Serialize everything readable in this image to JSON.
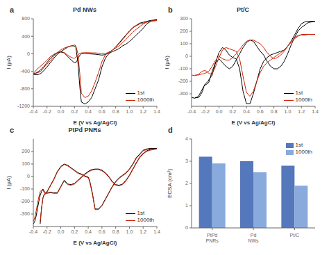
{
  "chart_data": [
    {
      "type": "line",
      "title": "Pd NWs",
      "annotations": [
        "a"
      ],
      "xlabel": "E (V vs Ag/AgCl)",
      "ylabel": "I (μA)",
      "x": [
        -0.4,
        -0.35,
        -0.3,
        -0.27,
        -0.24,
        -0.2,
        -0.15,
        -0.1,
        -0.05,
        0.0,
        0.05,
        0.1,
        0.15,
        0.2,
        0.22,
        0.25,
        0.28,
        0.3,
        0.35,
        0.4,
        0.45,
        0.5,
        0.55,
        0.6,
        0.65,
        0.7,
        0.75,
        0.8,
        0.85,
        0.9,
        0.95,
        1.0,
        1.05,
        1.1,
        1.15,
        1.2,
        1.25,
        1.3,
        1.35,
        1.4,
        1.4,
        1.35,
        1.3,
        1.25,
        1.2,
        1.15,
        1.1,
        1.05,
        1.0,
        0.95,
        0.9,
        0.85,
        0.8,
        0.75,
        0.7,
        0.65,
        0.6,
        0.55,
        0.5,
        0.45,
        0.4,
        0.35,
        0.3,
        0.28,
        0.26,
        0.24,
        0.22,
        0.2,
        0.18,
        0.15,
        0.1,
        0.05,
        0.0,
        -0.05,
        -0.1,
        -0.15,
        -0.2,
        -0.25,
        -0.3,
        -0.35,
        -0.4
      ],
      "xlim": [
        -0.4,
        1.4
      ],
      "xticks": [
        -0.4,
        -0.2,
        {
          "value": 0.0,
          "label": "0.0"
        },
        0.2,
        0.4,
        0.6,
        0.8,
        {
          "value": 1.0,
          "label": "1.0"
        },
        1.2,
        1.4
      ],
      "ylim": [
        -1200,
        800
      ],
      "yticks": [
        -1200,
        -800,
        -400,
        0,
        400,
        800
      ],
      "series": [
        {
          "name": "1st",
          "color": "black",
          "values": [
            -470,
            -480,
            -460,
            -420,
            -370,
            -300,
            -200,
            -100,
            -10,
            50,
            100,
            150,
            180,
            180,
            140,
            -200,
            -800,
            -1100,
            -1150,
            -1100,
            -1000,
            -800,
            -600,
            -300,
            -100,
            0,
            50,
            80,
            120,
            180,
            220,
            280,
            350,
            430,
            500,
            580,
            680,
            730,
            760,
            780,
            780,
            770,
            760,
            740,
            720,
            700,
            650,
            600,
            520,
            430,
            340,
            250,
            160,
            80,
            20,
            -20,
            -30,
            -20,
            -10,
            -5,
            0,
            10,
            0,
            -30,
            -80,
            -150,
            -200,
            -200,
            -180,
            -140,
            -60,
            20,
            40,
            20,
            -30,
            -100,
            -200,
            -300,
            -380,
            -430,
            -470
          ]
        },
        {
          "name": "1000th",
          "color": "#cc2200",
          "values": [
            -450,
            -440,
            -410,
            -360,
            -300,
            -240,
            -150,
            -60,
            30,
            90,
            130,
            160,
            180,
            200,
            180,
            0,
            -500,
            -900,
            -1000,
            -970,
            -850,
            -650,
            -430,
            -180,
            -20,
            40,
            80,
            130,
            180,
            250,
            330,
            410,
            490,
            560,
            620,
            680,
            720,
            740,
            750,
            760,
            760,
            755,
            745,
            725,
            700,
            680,
            640,
            590,
            510,
            420,
            320,
            230,
            150,
            80,
            30,
            10,
            10,
            15,
            20,
            20,
            25,
            25,
            20,
            10,
            -10,
            -40,
            -80,
            -100,
            -100,
            -80,
            -30,
            30,
            50,
            30,
            -10,
            -60,
            -150,
            -220,
            -290,
            -360,
            -450
          ]
        }
      ],
      "legend": "lower right",
      "grid": false
    },
    {
      "type": "line",
      "title": "Pt/C",
      "annotations": [
        "b"
      ],
      "xlabel": "E (V vs Ag/AgCl)",
      "ylabel": "I (μA)",
      "x": [
        -0.4,
        -0.35,
        -0.3,
        -0.27,
        -0.24,
        -0.22,
        -0.2,
        -0.18,
        -0.16,
        -0.14,
        -0.1,
        -0.05,
        0.0,
        0.05,
        0.1,
        0.15,
        0.2,
        0.25,
        0.3,
        0.35,
        0.4,
        0.45,
        0.5,
        0.55,
        0.6,
        0.65,
        0.7,
        0.75,
        0.8,
        0.85,
        0.9,
        0.95,
        1.0,
        1.05,
        1.1,
        1.15,
        1.2,
        1.25,
        1.3,
        1.35,
        1.4,
        1.4,
        1.35,
        1.3,
        1.25,
        1.2,
        1.15,
        1.1,
        1.05,
        1.0,
        0.95,
        0.9,
        0.85,
        0.8,
        0.75,
        0.7,
        0.65,
        0.6,
        0.55,
        0.5,
        0.45,
        0.4,
        0.35,
        0.3,
        0.25,
        0.2,
        0.15,
        0.1,
        0.05,
        0.0,
        -0.05,
        -0.1,
        -0.15,
        -0.2,
        -0.22,
        -0.24,
        -0.27,
        -0.3,
        -0.35
      ],
      "xlim": [
        -0.4,
        1.4
      ],
      "xticks": [
        -0.4,
        -0.2,
        {
          "value": 0.0,
          "label": "0.0"
        },
        0.2,
        0.4,
        0.6,
        0.8,
        {
          "value": 1.0,
          "label": "1.0"
        },
        1.2,
        1.4
      ],
      "ylim": [
        -400,
        300
      ],
      "yticks": [
        -300,
        -200,
        -100,
        0,
        100,
        200,
        300
      ],
      "series": [
        {
          "name": "1st",
          "color": "black",
          "values": [
            -330,
            -335,
            -320,
            -290,
            -260,
            -240,
            -220,
            -210,
            -200,
            -180,
            -150,
            -50,
            30,
            70,
            50,
            10,
            -10,
            -20,
            -100,
            -280,
            -380,
            -380,
            -300,
            -200,
            -100,
            -40,
            -10,
            10,
            20,
            30,
            40,
            50,
            80,
            120,
            170,
            220,
            260,
            275,
            280,
            280,
            280,
            280,
            275,
            270,
            250,
            230,
            200,
            150,
            90,
            20,
            -40,
            -80,
            -100,
            -100,
            -80,
            -40,
            10,
            40,
            80,
            120,
            130,
            110,
            70,
            20,
            -30,
            -80,
            -100,
            -80,
            -50,
            -20,
            -50,
            -120,
            -210,
            -230,
            -240,
            -280,
            -310,
            -330,
            -330
          ]
        },
        {
          "name": "1000th",
          "color": "#cc2200",
          "values": [
            -150,
            -155,
            -145,
            -130,
            -120,
            -115,
            -115,
            -120,
            -130,
            -140,
            -140,
            -80,
            -10,
            50,
            70,
            60,
            50,
            40,
            -20,
            -160,
            -290,
            -320,
            -280,
            -200,
            -130,
            -80,
            -50,
            -30,
            -10,
            10,
            30,
            50,
            80,
            110,
            140,
            160,
            175,
            175,
            175,
            175,
            175,
            175,
            175,
            175,
            170,
            170,
            165,
            150,
            120,
            80,
            40,
            10,
            -10,
            -20,
            0,
            30,
            70,
            100,
            115,
            130,
            130,
            120,
            90,
            55,
            20,
            -10,
            -30,
            -30,
            -20,
            0,
            -30,
            -80,
            -120,
            -135,
            -140,
            -140,
            -145,
            -150,
            -150
          ]
        }
      ],
      "legend": "lower right",
      "grid": false
    },
    {
      "type": "line",
      "title": "PtPd PNRs",
      "annotations": [
        "c"
      ],
      "xlabel": "E (V vs Ag/AgCl)",
      "ylabel": "I (μA)",
      "x": [
        -0.4,
        -0.38,
        -0.36,
        -0.34,
        -0.32,
        -0.3,
        -0.28,
        -0.26,
        -0.24,
        -0.22,
        -0.2,
        -0.18,
        -0.16,
        -0.14,
        -0.1,
        -0.05,
        0.0,
        0.05,
        0.1,
        0.15,
        0.2,
        0.25,
        0.3,
        0.35,
        0.4,
        0.42,
        0.44,
        0.46,
        0.5,
        0.55,
        0.6,
        0.65,
        0.7,
        0.75,
        0.8,
        0.85,
        0.9,
        0.95,
        1.0,
        1.05,
        1.1,
        1.15,
        1.2,
        1.25,
        1.3,
        1.35,
        1.4,
        1.4,
        1.35,
        1.3,
        1.25,
        1.2,
        1.15,
        1.1,
        1.05,
        1.0,
        0.95,
        0.9,
        0.85,
        0.8,
        0.75,
        0.7,
        0.65,
        0.6,
        0.55,
        0.5,
        0.45,
        0.4,
        0.35,
        0.3,
        0.25,
        0.2,
        0.15,
        0.1,
        0.05,
        0.0,
        -0.05,
        -0.1,
        -0.15,
        -0.2,
        -0.22,
        -0.24,
        -0.26,
        -0.28,
        -0.3
      ],
      "xlim": [
        -0.4,
        1.4
      ],
      "xticks": [
        -0.4,
        -0.2,
        {
          "value": 0.0,
          "label": "0.0"
        },
        0.2,
        0.4,
        0.6,
        0.8,
        {
          "value": 1.0,
          "label": "1.0"
        },
        1.2,
        1.4
      ],
      "ylim": [
        -400,
        300
      ],
      "yticks": [
        -300,
        -200,
        -100,
        0,
        100,
        200
      ],
      "series": [
        {
          "name": "1st",
          "color": "black",
          "values": [
            -380,
            -360,
            -320,
            -260,
            -200,
            -150,
            -120,
            -100,
            -120,
            -130,
            -120,
            -100,
            -80,
            -60,
            -20,
            40,
            80,
            100,
            90,
            70,
            50,
            30,
            20,
            5,
            -5,
            -30,
            -80,
            -130,
            -260,
            -260,
            -230,
            -180,
            -130,
            -80,
            -40,
            -10,
            10,
            30,
            60,
            100,
            150,
            180,
            210,
            220,
            225,
            225,
            225,
            225,
            220,
            215,
            205,
            185,
            155,
            110,
            60,
            10,
            -30,
            -60,
            -70,
            -65,
            -40,
            0,
            30,
            50,
            60,
            60,
            55,
            40,
            20,
            -5,
            -30,
            -55,
            -65,
            -60,
            -30,
            -80,
            -130,
            -130,
            -125,
            -130,
            -135,
            -140,
            -170,
            -250,
            -380
          ]
        },
        {
          "name": "1000th",
          "color": "#cc2200",
          "values": [
            -360,
            -330,
            -280,
            -220,
            -165,
            -120,
            -110,
            -110,
            -130,
            -135,
            -125,
            -105,
            -85,
            -65,
            -25,
            35,
            75,
            95,
            85,
            65,
            45,
            25,
            15,
            0,
            -10,
            -40,
            -90,
            -140,
            -265,
            -265,
            -235,
            -185,
            -135,
            -85,
            -45,
            -15,
            5,
            25,
            55,
            95,
            145,
            175,
            205,
            215,
            220,
            220,
            220,
            220,
            215,
            210,
            200,
            180,
            150,
            105,
            55,
            5,
            -35,
            -65,
            -75,
            -70,
            -45,
            -5,
            25,
            45,
            55,
            55,
            50,
            35,
            15,
            -10,
            -35,
            -60,
            -70,
            -65,
            -35,
            -85,
            -135,
            -135,
            -130,
            -135,
            -140,
            -145,
            -175,
            -255,
            -360
          ]
        }
      ],
      "legend": "lower right",
      "grid": false
    },
    {
      "type": "bar",
      "annotations": [
        "d"
      ],
      "ylabel": "ECSA (cm²)",
      "categories": [
        "PtPd\nPNRs",
        "Pd\nNWs",
        "Pt/C"
      ],
      "series": [
        {
          "name": "1st",
          "color": "#5577bb",
          "values": [
            3.2,
            3.0,
            2.8
          ]
        },
        {
          "name": "1000th",
          "color": "#88aadd",
          "values": [
            2.9,
            2.5,
            1.9
          ]
        }
      ],
      "ylim": [
        0,
        4
      ],
      "yticks": [
        0,
        1,
        2,
        3,
        4
      ],
      "legend": "upper right",
      "grid": false
    }
  ]
}
